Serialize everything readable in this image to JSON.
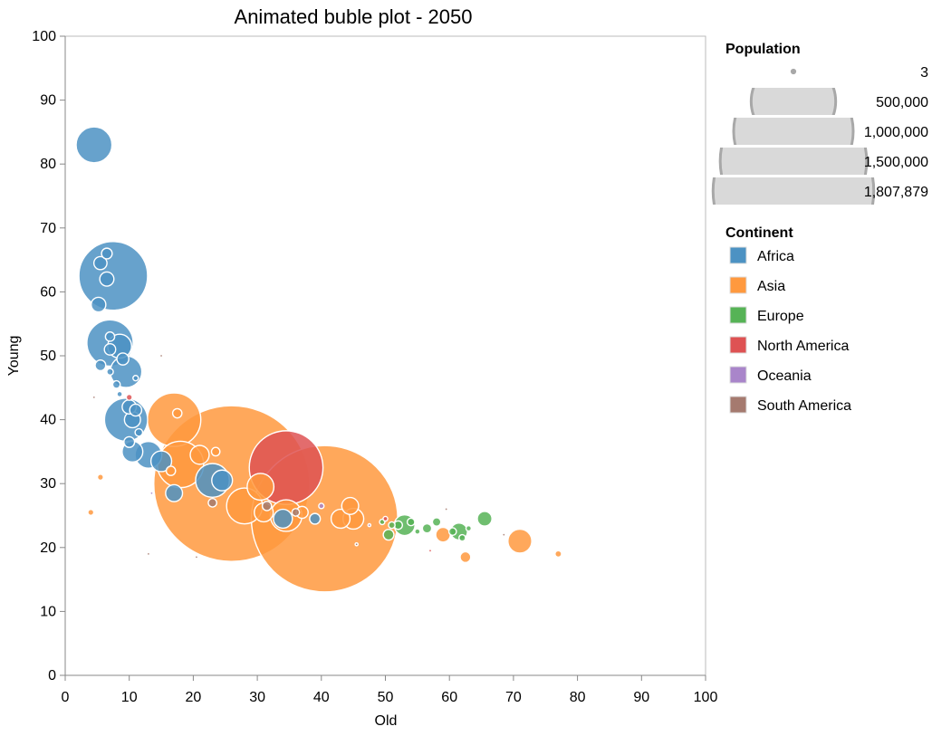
{
  "chart_data": {
    "type": "scatter",
    "title": "Animated buble plot - 2050",
    "xlabel": "Old",
    "ylabel": "Young",
    "xlim": [
      0,
      100
    ],
    "ylim": [
      0,
      100
    ],
    "xticks": [
      0,
      10,
      20,
      30,
      40,
      50,
      60,
      70,
      80,
      90,
      100
    ],
    "yticks": [
      0,
      10,
      20,
      30,
      40,
      50,
      60,
      70,
      80,
      90,
      100
    ],
    "grid": false,
    "size_legend": {
      "title": "Population",
      "items": [
        {
          "label": "3",
          "value": 3
        },
        {
          "label": "500,000",
          "value": 500000
        },
        {
          "label": "1,000,000",
          "value": 1000000
        },
        {
          "label": "1,500,000",
          "value": 1500000
        },
        {
          "label": "1,807,879",
          "value": 1807879
        }
      ]
    },
    "color_legend": {
      "title": "Continent",
      "placement": "right",
      "items": [
        {
          "label": "Africa",
          "color": "#4c92c3"
        },
        {
          "label": "Asia",
          "color": "#ff993e"
        },
        {
          "label": "Europe",
          "color": "#56b356"
        },
        {
          "label": "North America",
          "color": "#de5253"
        },
        {
          "label": "Oceania",
          "color": "#a985ca"
        },
        {
          "label": "South America",
          "color": "#a57a6f"
        }
      ]
    },
    "series": [
      {
        "name": "Africa",
        "color": "#4c92c3",
        "points": [
          {
            "x": 4.5,
            "y": 83,
            "size": 90000
          },
          {
            "x": 7.5,
            "y": 62.5,
            "size": 330000
          },
          {
            "x": 6.5,
            "y": 66,
            "size": 8000
          },
          {
            "x": 5.5,
            "y": 64.5,
            "size": 12000
          },
          {
            "x": 5.2,
            "y": 58,
            "size": 15000
          },
          {
            "x": 6.5,
            "y": 62,
            "size": 14000
          },
          {
            "x": 7,
            "y": 52,
            "size": 150000
          },
          {
            "x": 8.5,
            "y": 51.5,
            "size": 40000
          },
          {
            "x": 7,
            "y": 53,
            "size": 6000
          },
          {
            "x": 7,
            "y": 51,
            "size": 9000
          },
          {
            "x": 5.5,
            "y": 48.5,
            "size": 8000
          },
          {
            "x": 9,
            "y": 49.5,
            "size": 10000
          },
          {
            "x": 9.5,
            "y": 47.5,
            "size": 70000
          },
          {
            "x": 9.5,
            "y": 40,
            "size": 130000
          },
          {
            "x": 10,
            "y": 42,
            "size": 14000
          },
          {
            "x": 10.5,
            "y": 40,
            "size": 18000
          },
          {
            "x": 11,
            "y": 41.5,
            "size": 10000
          },
          {
            "x": 10,
            "y": 36.5,
            "size": 8000
          },
          {
            "x": 10.5,
            "y": 35,
            "size": 30000
          },
          {
            "x": 11.5,
            "y": 38,
            "size": 4000
          },
          {
            "x": 8,
            "y": 45.5,
            "size": 4000
          },
          {
            "x": 7,
            "y": 47.5,
            "size": 3000
          },
          {
            "x": 8.5,
            "y": 44,
            "size": 2000
          },
          {
            "x": 11,
            "y": 46.5,
            "size": 2000
          },
          {
            "x": 15,
            "y": 33.5,
            "size": 30000
          },
          {
            "x": 13,
            "y": 34.5,
            "size": 50000
          },
          {
            "x": 17,
            "y": 28.5,
            "size": 20000
          },
          {
            "x": 23,
            "y": 30.5,
            "size": 80000
          },
          {
            "x": 24.5,
            "y": 30.5,
            "size": 30000
          },
          {
            "x": 34,
            "y": 24.5,
            "size": 25000
          },
          {
            "x": 39,
            "y": 24.5,
            "size": 8000
          }
        ]
      },
      {
        "name": "Asia",
        "color": "#ff993e",
        "points": [
          {
            "x": 26,
            "y": 30,
            "size": 1700000
          },
          {
            "x": 40.5,
            "y": 24.5,
            "size": 1500000
          },
          {
            "x": 17,
            "y": 40,
            "size": 200000
          },
          {
            "x": 18,
            "y": 33,
            "size": 150000
          },
          {
            "x": 21,
            "y": 34.5,
            "size": 25000
          },
          {
            "x": 30.5,
            "y": 29.5,
            "size": 50000
          },
          {
            "x": 28,
            "y": 26.5,
            "size": 90000
          },
          {
            "x": 34.5,
            "y": 25,
            "size": 70000
          },
          {
            "x": 31,
            "y": 25.5,
            "size": 25000
          },
          {
            "x": 37,
            "y": 25.5,
            "size": 10000
          },
          {
            "x": 43,
            "y": 24.5,
            "size": 25000
          },
          {
            "x": 44.5,
            "y": 26.5,
            "size": 20000
          },
          {
            "x": 45,
            "y": 24.5,
            "size": 30000
          },
          {
            "x": 59,
            "y": 22,
            "size": 15000
          },
          {
            "x": 71,
            "y": 21,
            "size": 40000
          },
          {
            "x": 62.5,
            "y": 18.5,
            "size": 8000
          },
          {
            "x": 77,
            "y": 19,
            "size": 3000
          },
          {
            "x": 5.5,
            "y": 31,
            "size": 2500
          },
          {
            "x": 4,
            "y": 25.5,
            "size": 2500
          },
          {
            "x": 17.5,
            "y": 41,
            "size": 6000
          },
          {
            "x": 23.5,
            "y": 35,
            "size": 5000
          },
          {
            "x": 16.5,
            "y": 32,
            "size": 6000
          }
        ]
      },
      {
        "name": "Europe",
        "color": "#56b356",
        "points": [
          {
            "x": 53,
            "y": 23.5,
            "size": 30000
          },
          {
            "x": 61.5,
            "y": 22.5,
            "size": 20000
          },
          {
            "x": 65.5,
            "y": 24.5,
            "size": 15000
          },
          {
            "x": 50.5,
            "y": 22,
            "size": 8000
          },
          {
            "x": 52,
            "y": 23.5,
            "size": 5000
          },
          {
            "x": 54,
            "y": 24,
            "size": 4000
          },
          {
            "x": 56.5,
            "y": 23,
            "size": 6000
          },
          {
            "x": 58,
            "y": 24,
            "size": 5000
          },
          {
            "x": 60.5,
            "y": 22.5,
            "size": 4000
          },
          {
            "x": 62,
            "y": 21.5,
            "size": 3000
          },
          {
            "x": 63,
            "y": 23,
            "size": 2000
          },
          {
            "x": 51,
            "y": 23.5,
            "size": 3000
          },
          {
            "x": 49.5,
            "y": 24,
            "size": 2000
          },
          {
            "x": 55,
            "y": 22.5,
            "size": 2000
          }
        ]
      },
      {
        "name": "North America",
        "color": "#de5253",
        "points": [
          {
            "x": 34.5,
            "y": 32.5,
            "size": 380000
          },
          {
            "x": 10,
            "y": 43.5,
            "size": 2500
          },
          {
            "x": 57,
            "y": 19.5,
            "size": 500
          },
          {
            "x": 50,
            "y": 24.5,
            "size": 1500
          }
        ]
      },
      {
        "name": "Oceania",
        "color": "#a985ca",
        "points": [
          {
            "x": 40,
            "y": 26.5,
            "size": 2000
          },
          {
            "x": 13.5,
            "y": 28.5,
            "size": 300
          },
          {
            "x": 47.5,
            "y": 23.5,
            "size": 500
          }
        ]
      },
      {
        "name": "South America",
        "color": "#a57a6f",
        "points": [
          {
            "x": 23,
            "y": 27,
            "size": 5000
          },
          {
            "x": 36,
            "y": 25.5,
            "size": 4000
          },
          {
            "x": 31.5,
            "y": 26.5,
            "size": 6000
          },
          {
            "x": 15,
            "y": 50,
            "size": 400
          },
          {
            "x": 4.5,
            "y": 43.5,
            "size": 300
          },
          {
            "x": 13,
            "y": 19,
            "size": 300
          },
          {
            "x": 20.5,
            "y": 18.5,
            "size": 300
          },
          {
            "x": 59.5,
            "y": 26,
            "size": 400
          },
          {
            "x": 68.5,
            "y": 22,
            "size": 400
          },
          {
            "x": 45.5,
            "y": 20.5,
            "size": 300
          }
        ]
      }
    ]
  }
}
